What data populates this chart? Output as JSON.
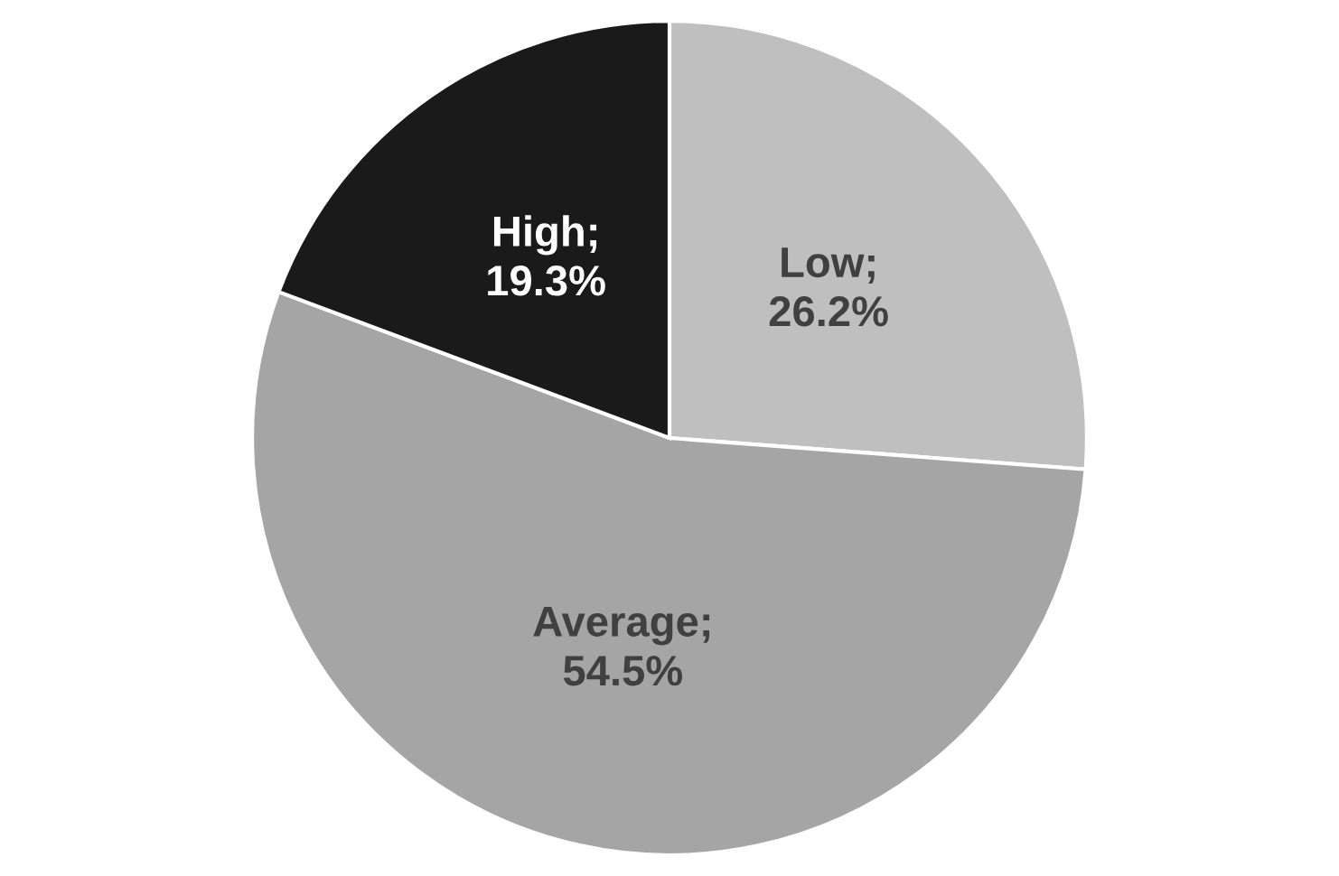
{
  "chart_data": {
    "type": "pie",
    "categories": [
      "Low",
      "Average",
      "High"
    ],
    "values": [
      26.2,
      54.5,
      19.3
    ],
    "colors": [
      "#bfbfbf",
      "#a5a5a5",
      "#1a1a1a"
    ],
    "value_labels": [
      ";\n26.2%",
      ";\n54.5%",
      ";\n19.3%"
    ]
  }
}
